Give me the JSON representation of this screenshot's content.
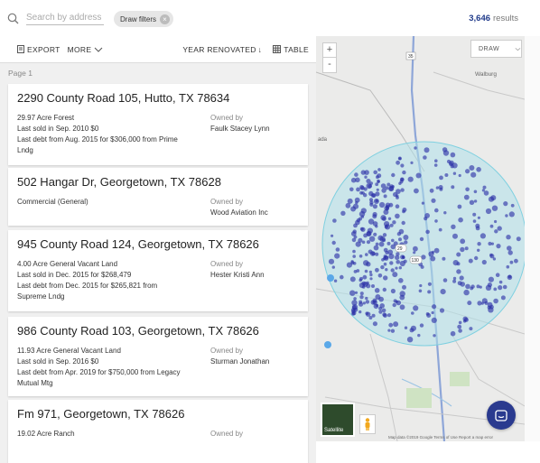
{
  "search": {
    "placeholder": "Search by address",
    "filter_chip": "Draw filters",
    "results_count": "3,646",
    "results_label": "results"
  },
  "toolbar": {
    "export": "EXPORT",
    "more": "MORE",
    "sort": "YEAR RENOVATED",
    "table": "TABLE"
  },
  "page_label": "Page 1",
  "cards": [
    {
      "title": "2290 County Road 105, Hutto, TX 78634",
      "lines": [
        "29.97 Acre Forest",
        "Last sold in Sep. 2010 $0",
        "Last debt from Aug. 2015 for $306,000 from Prime",
        "Lndg"
      ],
      "owned_label": "Owned by",
      "owner": "Faulk Stacey Lynn"
    },
    {
      "title": "502 Hangar Dr, Georgetown, TX 78628",
      "lines": [
        "Commercial (General)"
      ],
      "owned_label": "Owned by",
      "owner": "Wood Aviation Inc"
    },
    {
      "title": "945 County Road 124, Georgetown, TX 78626",
      "lines": [
        "4.00 Acre General Vacant Land",
        "Last sold in Dec. 2015 for $268,479",
        "Last debt from Dec. 2015 for $265,821 from",
        "Supreme Lndg"
      ],
      "owned_label": "Owned by",
      "owner": "Hester Kristi Ann"
    },
    {
      "title": "986 County Road 103, Georgetown, TX 78626",
      "lines": [
        "11.93 Acre General Vacant Land",
        "Last sold in Sep. 2016 $0",
        "Last debt from Apr. 2019 for $750,000 from Legacy",
        "Mutual Mtg"
      ],
      "owned_label": "Owned by",
      "owner": "Sturman Jonathan"
    },
    {
      "title": "Fm 971, Georgetown, TX 78626",
      "lines": [
        "19.02 Acre Ranch"
      ],
      "owned_label": "Owned by",
      "owner": ""
    }
  ],
  "map": {
    "draw_label": "DRAW",
    "zoom_in": "+",
    "zoom_out": "-",
    "satellite_label": "Satellite",
    "place_walburg": "Walburg",
    "place_ada": "ada",
    "route_130": "130",
    "route_35": "35",
    "route_29": "29",
    "attribution": "Map data ©2019 Google   Terms of Use   Report a map error"
  },
  "colors": {
    "accent": "#1f3a8a",
    "dot": "#2a2fa6",
    "circle": "#7fd0e0"
  }
}
